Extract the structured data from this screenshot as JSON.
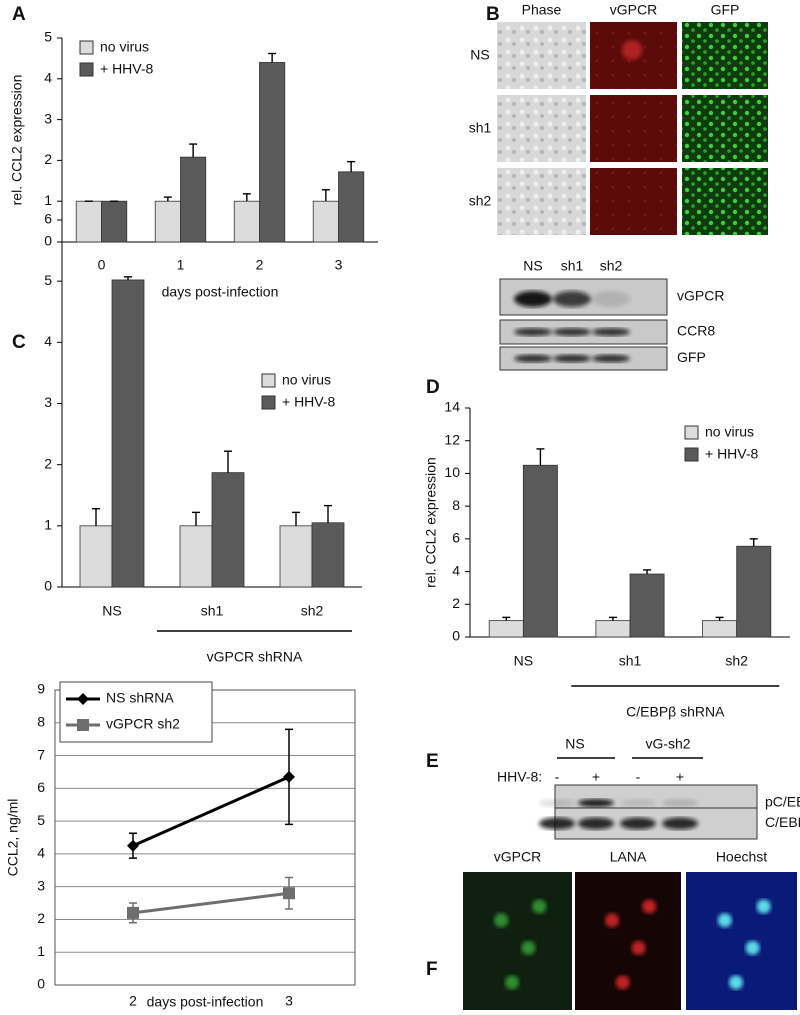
{
  "chart_data": [
    {
      "type": "bar",
      "ylabel": "rel. CCL2 expression",
      "xlabel": "days post-infection",
      "categories": [
        "0",
        "1",
        "2",
        "3"
      ],
      "series": [
        {
          "name": "no virus",
          "color": "#dcdcdc",
          "values": [
            1,
            1,
            1,
            1
          ],
          "errors": [
            0,
            0.1,
            0.18,
            0.28
          ]
        },
        {
          "name": "+ HHV-8",
          "color": "#5a5a5a",
          "values": [
            1,
            2.08,
            4.4,
            1.72
          ],
          "errors": [
            0,
            0.32,
            0.22,
            0.25
          ]
        }
      ],
      "ylim": [
        0,
        5
      ],
      "yticks": [
        0,
        1,
        2,
        3,
        4,
        5
      ],
      "grid": false,
      "legend": "upper left"
    },
    {
      "type": "bar",
      "group_label": "vGPCR shRNA",
      "categories": [
        "NS",
        "sh1",
        "sh2"
      ],
      "series": [
        {
          "name": "no virus",
          "color": "#dcdcdc",
          "values": [
            1,
            1,
            1
          ],
          "errors": [
            0.28,
            0.22,
            0.22
          ]
        },
        {
          "name": "+ HHV-8",
          "color": "#5a5a5a",
          "values": [
            5.02,
            1.87,
            1.05
          ],
          "errors": [
            0.05,
            0.35,
            0.28
          ]
        }
      ],
      "ylim": [
        0,
        6
      ],
      "yticks": [
        0,
        1,
        2,
        3,
        4,
        5,
        6
      ],
      "grid": false,
      "legend": "upper right"
    },
    {
      "type": "bar",
      "ylabel": "rel. CCL2 expression",
      "group_label": "C/EBPβ shRNA",
      "categories": [
        "NS",
        "sh1",
        "sh2"
      ],
      "series": [
        {
          "name": "no virus",
          "color": "#dcdcdc",
          "values": [
            1,
            1,
            1
          ],
          "errors": [
            0.2,
            0.2,
            0.2
          ]
        },
        {
          "name": "+ HHV-8",
          "color": "#5a5a5a",
          "values": [
            10.5,
            3.85,
            5.55
          ],
          "errors": [
            1.0,
            0.25,
            0.45
          ]
        }
      ],
      "ylim": [
        0,
        14
      ],
      "yticks": [
        0,
        2,
        4,
        6,
        8,
        10,
        12,
        14
      ],
      "grid": false,
      "legend": "upper right"
    },
    {
      "type": "line",
      "ylabel": "CCL2, ng/ml",
      "xlabel": "days post-infection",
      "categories": [
        "2",
        "3"
      ],
      "series": [
        {
          "name": "NS shRNA",
          "color": "#000000",
          "marker": "diamond",
          "values": [
            4.25,
            6.35
          ],
          "errors": [
            0.38,
            1.45
          ]
        },
        {
          "name": "vGPCR sh2",
          "color": "#6e6e6e",
          "marker": "square",
          "values": [
            2.2,
            2.8
          ],
          "errors": [
            0.3,
            0.48
          ]
        }
      ],
      "ylim": [
        0,
        9
      ],
      "yticks": [
        0,
        1,
        2,
        3,
        4,
        5,
        6,
        7,
        8,
        9
      ],
      "grid": true,
      "legend": "upper left"
    }
  ],
  "panels": {
    "letters": [
      "A",
      "B",
      "C",
      "D",
      "E",
      "F"
    ],
    "b_images": {
      "columns": [
        "Phase",
        "vGPCR",
        "GFP"
      ],
      "rows": [
        "NS",
        "sh1",
        "sh2"
      ]
    },
    "b_blot": {
      "lanes": [
        "NS",
        "sh1",
        "sh2"
      ],
      "bands": [
        "vGPCR",
        "CCR8",
        "GFP"
      ]
    },
    "e_blot": {
      "groups": [
        "NS",
        "vG-sh2"
      ],
      "treatment": "HHV-8:",
      "signs": [
        "-",
        "+",
        "-",
        "+"
      ],
      "bands": [
        "pC/EBPβ",
        "C/EBPβ"
      ]
    },
    "f_images": [
      "vGPCR",
      "LANA",
      "Hoechst"
    ]
  }
}
